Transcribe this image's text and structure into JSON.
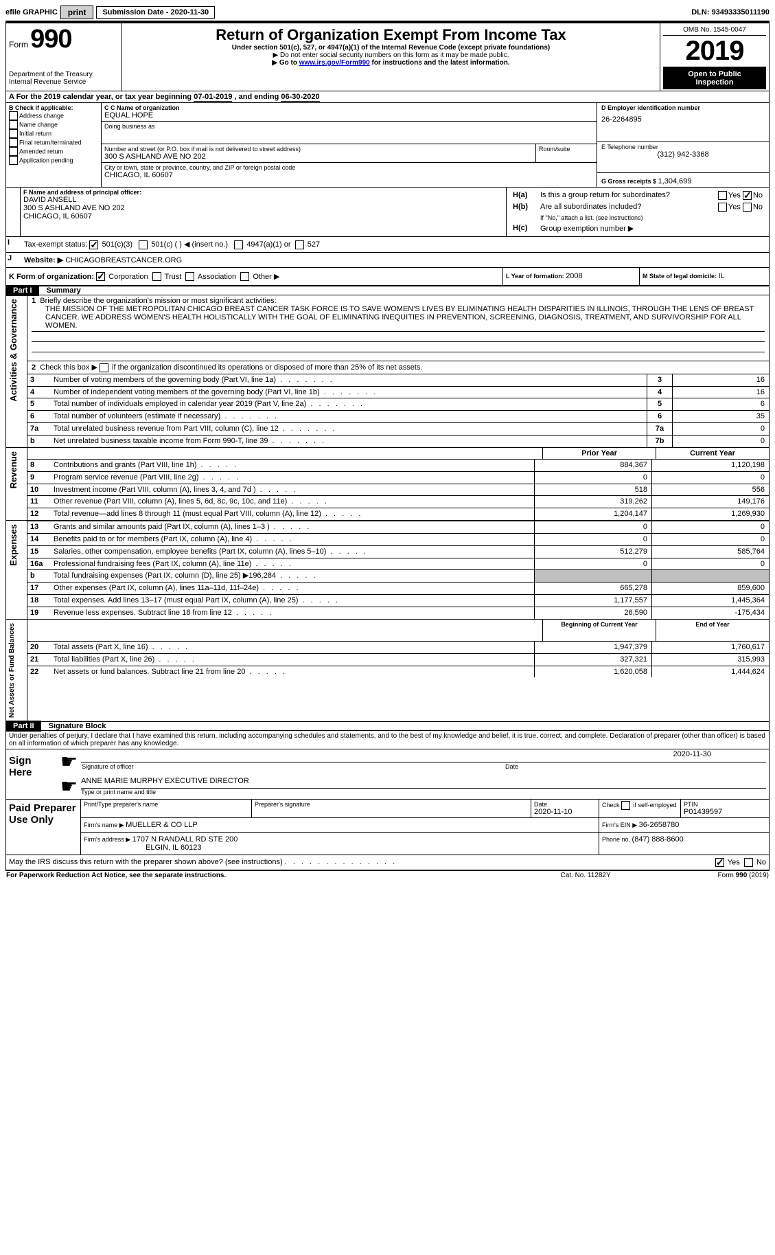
{
  "topbar": {
    "efile": "efile GRAPHIC",
    "print": "print",
    "subdate_label": "Submission Date - ",
    "subdate": "2020-11-30",
    "dln_label": "DLN: ",
    "dln": "93493335011190"
  },
  "header": {
    "form_label": "Form",
    "form_number": "990",
    "title": "Return of Organization Exempt From Income Tax",
    "subtitle": "Under section 501(c), 527, or 4947(a)(1) of the Internal Revenue Code (except private foundations)",
    "note1": "Do not enter social security numbers on this form as it may be made public.",
    "note2_pre": "Go to ",
    "note2_link": "www.irs.gov/Form990",
    "note2_post": " for instructions and the latest information.",
    "dept": "Department of the Treasury\nInternal Revenue Service",
    "omb": "OMB No. 1545-0047",
    "year": "2019",
    "inspect1": "Open to Public",
    "inspect2": "Inspection"
  },
  "periodA": {
    "label": "For the 2019 calendar year, or tax year beginning ",
    "begin": "07-01-2019",
    "mid": " , and ending ",
    "end": "06-30-2020"
  },
  "boxB": {
    "label": "B Check if applicable:",
    "items": [
      "Address change",
      "Name change",
      "Initial return",
      "Final return/terminated",
      "Amended return",
      "Application pending"
    ]
  },
  "boxC": {
    "name_label": "C Name of organization",
    "name": "EQUAL HOPE",
    "dba_label": "Doing business as",
    "addr_label": "Number and street (or P.O. box if mail is not delivered to street address)",
    "room_label": "Room/suite",
    "addr": "300 S ASHLAND AVE NO 202",
    "city_label": "City or town, state or province, country, and ZIP or foreign postal code",
    "city": "CHICAGO, IL  60607"
  },
  "boxD": {
    "label": "D Employer identification number",
    "ein": "26-2264895"
  },
  "boxE": {
    "label": "E Telephone number",
    "phone": "(312) 942-3368"
  },
  "boxG": {
    "label": "G Gross receipts $ ",
    "amount": "1,304,699"
  },
  "boxF": {
    "label": "F Name and address of principal officer:",
    "name": "DAVID ANSELL",
    "addr": "300 S ASHLAND AVE NO 202",
    "city": "CHICAGO, IL  60607"
  },
  "boxH": {
    "a_label": "H(a)",
    "a_text": "Is this a group return for subordinates?",
    "b_label": "H(b)",
    "b_text": "Are all subordinates included?",
    "b_note": "If \"No,\" attach a list. (see instructions)",
    "c_label": "H(c)",
    "c_text": "Group exemption number ▶",
    "yes": "Yes",
    "no": "No"
  },
  "boxI": {
    "label": "Tax-exempt status:",
    "opt1": "501(c)(3)",
    "opt2": "501(c) (  ) ◀ (insert no.)",
    "opt3": "4947(a)(1) or",
    "opt4": "527"
  },
  "boxJ": {
    "label": "Website: ▶",
    "value": "CHICAGOBREASTCANCER.ORG"
  },
  "boxK": {
    "label": "K Form of organization:",
    "opts": [
      "Corporation",
      "Trust",
      "Association",
      "Other ▶"
    ]
  },
  "boxL": {
    "label": "L Year of formation: ",
    "value": "2008"
  },
  "boxM": {
    "label": "M State of legal domicile: ",
    "value": "IL"
  },
  "part1": {
    "label": "Part I",
    "title": "Summary",
    "q1_label": "1",
    "q1_text": "Briefly describe the organization's mission or most significant activities:",
    "mission": "THE MISSION OF THE METROPOLITAN CHICAGO BREAST CANCER TASK FORCE IS TO SAVE WOMEN'S LIVES BY ELIMINATING HEALTH DISPARITIES IN ILLINOIS, THROUGH THE LENS OF BREAST CANCER. WE ADDRESS WOMEN'S HEALTH HOLISTICALLY WITH THE GOAL OF ELIMINATING INEQUITIES IN PREVENTION, SCREENING, DIAGNOSIS, TREATMENT, AND SURVIVORSHIP FOR ALL WOMEN.",
    "q2_text": "Check this box ▶       if the organization discontinued its operations or disposed of more than 25% of its net assets.",
    "sidebars": {
      "ag": "Activities & Governance",
      "rev": "Revenue",
      "exp": "Expenses",
      "nab": "Net Assets or Fund Balances"
    },
    "lines": [
      {
        "n": "3",
        "t": "Number of voting members of the governing body (Part VI, line 1a)",
        "ln": "3",
        "v": "16"
      },
      {
        "n": "4",
        "t": "Number of independent voting members of the governing body (Part VI, line 1b)",
        "ln": "4",
        "v": "16"
      },
      {
        "n": "5",
        "t": "Total number of individuals employed in calendar year 2019 (Part V, line 2a)",
        "ln": "5",
        "v": "6"
      },
      {
        "n": "6",
        "t": "Total number of volunteers (estimate if necessary)",
        "ln": "6",
        "v": "35"
      },
      {
        "n": "7a",
        "t": "Total unrelated business revenue from Part VIII, column (C), line 12",
        "ln": "7a",
        "v": "0"
      },
      {
        "n": "b",
        "t": "Net unrelated business taxable income from Form 990-T, line 39",
        "ln": "7b",
        "v": "0"
      }
    ],
    "prior_hdr": "Prior Year",
    "current_hdr": "Current Year",
    "rev_lines": [
      {
        "n": "8",
        "t": "Contributions and grants (Part VIII, line 1h)",
        "p": "884,367",
        "c": "1,120,198"
      },
      {
        "n": "9",
        "t": "Program service revenue (Part VIII, line 2g)",
        "p": "0",
        "c": "0"
      },
      {
        "n": "10",
        "t": "Investment income (Part VIII, column (A), lines 3, 4, and 7d )",
        "p": "518",
        "c": "556"
      },
      {
        "n": "11",
        "t": "Other revenue (Part VIII, column (A), lines 5, 6d, 8c, 9c, 10c, and 11e)",
        "p": "319,262",
        "c": "149,176"
      },
      {
        "n": "12",
        "t": "Total revenue—add lines 8 through 11 (must equal Part VIII, column (A), line 12)",
        "p": "1,204,147",
        "c": "1,269,930"
      }
    ],
    "exp_lines": [
      {
        "n": "13",
        "t": "Grants and similar amounts paid (Part IX, column (A), lines 1–3 )",
        "p": "0",
        "c": "0"
      },
      {
        "n": "14",
        "t": "Benefits paid to or for members (Part IX, column (A), line 4)",
        "p": "0",
        "c": "0"
      },
      {
        "n": "15",
        "t": "Salaries, other compensation, employee benefits (Part IX, column (A), lines 5–10)",
        "p": "512,279",
        "c": "585,764"
      },
      {
        "n": "16a",
        "t": "Professional fundraising fees (Part IX, column (A), line 11e)",
        "p": "0",
        "c": "0"
      },
      {
        "n": "b",
        "t": "Total fundraising expenses (Part IX, column (D), line 25) ▶196,284",
        "p": "",
        "c": "",
        "grey": true
      },
      {
        "n": "17",
        "t": "Other expenses (Part IX, column (A), lines 11a–11d, 11f–24e)",
        "p": "665,278",
        "c": "859,600"
      },
      {
        "n": "18",
        "t": "Total expenses. Add lines 13–17 (must equal Part IX, column (A), line 25)",
        "p": "1,177,557",
        "c": "1,445,364"
      },
      {
        "n": "19",
        "t": "Revenue less expenses. Subtract line 18 from line 12",
        "p": "26,590",
        "c": "-175,434"
      }
    ],
    "boy_hdr": "Beginning of Current Year",
    "eoy_hdr": "End of Year",
    "bal_lines": [
      {
        "n": "20",
        "t": "Total assets (Part X, line 16)",
        "p": "1,947,379",
        "c": "1,760,617"
      },
      {
        "n": "21",
        "t": "Total liabilities (Part X, line 26)",
        "p": "327,321",
        "c": "315,993"
      },
      {
        "n": "22",
        "t": "Net assets or fund balances. Subtract line 21 from line 20",
        "p": "1,620,058",
        "c": "1,444,624"
      }
    ]
  },
  "part2": {
    "label": "Part II",
    "title": "Signature Block",
    "perjury": "Under penalties of perjury, I declare that I have examined this return, including accompanying schedules and statements, and to the best of my knowledge and belief, it is true, correct, and complete. Declaration of preparer (other than officer) is based on all information of which preparer has any knowledge.",
    "sign_here": "Sign Here",
    "sig_label": "Signature of officer",
    "date_label": "Date",
    "sig_date": "2020-11-30",
    "name_title": "ANNE MARIE MURPHY  EXECUTIVE DIRECTOR",
    "name_label": "Type or print name and title",
    "paid": "Paid Preparer Use Only",
    "prep_name_label": "Print/Type preparer's name",
    "prep_sig_label": "Preparer's signature",
    "prep_date_label": "Date",
    "prep_date": "2020-11-10",
    "check_label": "Check        if self-employed",
    "ptin_label": "PTIN",
    "ptin": "P01439597",
    "firm_name_label": "Firm's name    ▶ ",
    "firm_name": "MUELLER & CO LLP",
    "firm_ein_label": "Firm's EIN ▶ ",
    "firm_ein": "36-2658780",
    "firm_addr_label": "Firm's address ▶ ",
    "firm_addr1": "1707 N RANDALL RD STE 200",
    "firm_addr2": "ELGIN, IL  60123",
    "phone_label": "Phone no. ",
    "phone": "(847) 888-8600",
    "discuss": "May the IRS discuss this return with the preparer shown above? (see instructions)",
    "yes": "Yes",
    "no": "No"
  },
  "footer": {
    "left": "For Paperwork Reduction Act Notice, see the separate instructions.",
    "mid": "Cat. No. 11282Y",
    "right": "Form 990 (2019)"
  }
}
